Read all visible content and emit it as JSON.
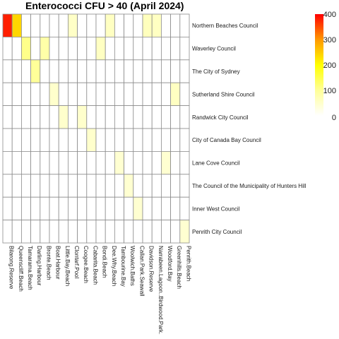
{
  "chart_data": {
    "type": "heatmap",
    "title": "Enterococci CFU > 40 (April 2024)",
    "xlabel": "",
    "ylabel": "",
    "columns": [
      "Bilarong.Reserve",
      "Queenscliff.Beach",
      "Tamarama.Beach",
      "Darling.Harbour",
      "Bronte.Beach",
      "Boat.Harbour",
      "Little.Bay.Beach",
      "Clontarf.Pool",
      "Coogee.Beach",
      "Cabarita.Beach",
      "Bondi.Beach",
      "Dee.Why.Beach",
      "Tambourine.Bay",
      "Woolwich.Baths",
      "Callan.Park.Seawall",
      "Davidson.Reserve",
      "Narrabeen.Lagoon..Birdwood.Park.",
      "Woodford.Bay",
      "Greenhills.Beach",
      "Penrith.Beach"
    ],
    "rows": [
      "Northern Beaches Council",
      "Waverley Council",
      "The City of Sydney",
      "Sutherland Shire Council",
      "Randwick City Council",
      "City of Canada Bay Council",
      "Lane Cove Council",
      "The Council of the Municipality of Hunters Hill",
      "Inner West Council",
      "Penrith City Council"
    ],
    "values": [
      [
        380,
        240,
        0,
        0,
        0,
        0,
        0,
        55,
        0,
        0,
        0,
        60,
        0,
        0,
        0,
        65,
        60,
        0,
        0,
        0
      ],
      [
        0,
        0,
        110,
        0,
        85,
        0,
        0,
        0,
        0,
        0,
        60,
        0,
        0,
        0,
        0,
        0,
        0,
        0,
        0,
        0
      ],
      [
        0,
        0,
        0,
        100,
        0,
        0,
        0,
        0,
        0,
        0,
        0,
        0,
        0,
        0,
        0,
        0,
        0,
        0,
        0,
        0
      ],
      [
        0,
        0,
        0,
        0,
        0,
        50,
        0,
        0,
        0,
        0,
        0,
        0,
        0,
        0,
        0,
        0,
        0,
        0,
        60,
        0
      ],
      [
        0,
        0,
        0,
        0,
        0,
        0,
        50,
        0,
        50,
        0,
        0,
        0,
        0,
        0,
        0,
        0,
        0,
        0,
        0,
        0
      ],
      [
        0,
        0,
        0,
        0,
        0,
        0,
        0,
        0,
        0,
        50,
        0,
        0,
        0,
        0,
        0,
        0,
        0,
        0,
        0,
        0
      ],
      [
        0,
        0,
        0,
        0,
        0,
        0,
        0,
        0,
        0,
        0,
        0,
        0,
        45,
        0,
        0,
        0,
        0,
        45,
        0,
        0
      ],
      [
        0,
        0,
        0,
        0,
        0,
        0,
        0,
        0,
        0,
        0,
        0,
        0,
        0,
        45,
        0,
        0,
        0,
        0,
        0,
        0
      ],
      [
        0,
        0,
        0,
        0,
        0,
        0,
        0,
        0,
        0,
        0,
        0,
        0,
        0,
        0,
        45,
        0,
        0,
        0,
        0,
        0
      ],
      [
        0,
        0,
        0,
        0,
        0,
        0,
        0,
        0,
        0,
        0,
        0,
        0,
        0,
        0,
        0,
        0,
        0,
        0,
        0,
        45
      ]
    ],
    "color_scale": {
      "range": [
        0,
        400
      ],
      "ticks": [
        0,
        100,
        200,
        300,
        400
      ],
      "low_color": "#ffffff",
      "mid_color": "#ffff00",
      "high_color": "#ff0000"
    },
    "legend_position": "right"
  }
}
